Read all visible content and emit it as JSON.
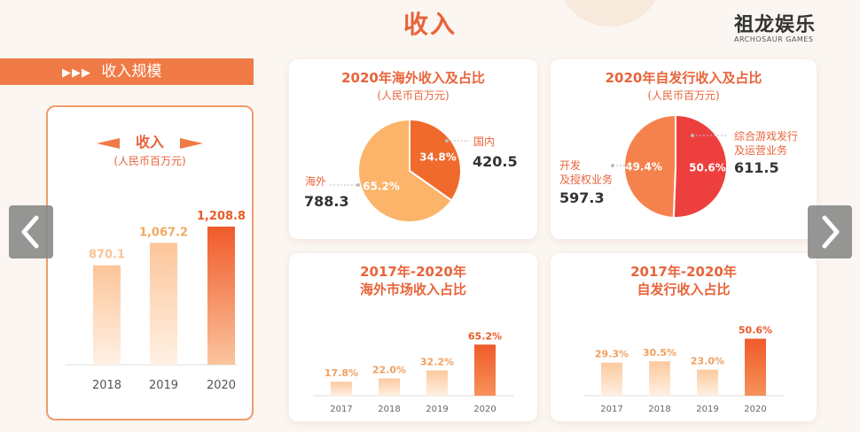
{
  "page": {
    "title": "收入"
  },
  "logo": {
    "main": "祖龙娱乐",
    "sub": "ARCHOSAUR GAMES"
  },
  "banner": {
    "arrows": "▶▶▶",
    "label": "收入规模"
  },
  "revenue": {
    "title": "收入",
    "unit": "(人民币百万元)",
    "chart_data": {
      "type": "bar",
      "categories": [
        "2018",
        "2019",
        "2020"
      ],
      "values": [
        870.1,
        1067.2,
        1208.8
      ],
      "value_labels": [
        "870.1",
        "1,067.2",
        "1,208.8"
      ],
      "title": "收入",
      "ylabel": "(人民币百万元)"
    }
  },
  "pie_overseas": {
    "title": "2020年海外收入及占比",
    "unit": "(人民币百万元)",
    "chart_data": {
      "type": "pie",
      "title": "2020年海外收入及占比",
      "slices": [
        {
          "name": "国内",
          "value": 420.5,
          "percent": 34.8,
          "pct_label": "34.8%",
          "value_label": "420.5",
          "color": "#f06a2c"
        },
        {
          "name": "海外",
          "value": 788.3,
          "percent": 65.2,
          "pct_label": "65.2%",
          "value_label": "788.3",
          "color": "#fbb46a"
        }
      ]
    }
  },
  "pie_self": {
    "title": "2020年自发行收入及占比",
    "unit": "(人民币百万元)",
    "chart_data": {
      "type": "pie",
      "title": "2020年自发行收入及占比",
      "slices": [
        {
          "name": "综合游戏发行及运营业务",
          "label_line1": "综合游戏发行",
          "label_line2": "及运营业务",
          "value": 611.5,
          "percent": 50.6,
          "pct_label": "50.6%",
          "value_label": "611.5",
          "color": "#ee3f3f"
        },
        {
          "name": "开发及授权业务",
          "label_line1": "开发",
          "label_line2": "及授权业务",
          "value": 597.3,
          "percent": 49.4,
          "pct_label": "49.4%",
          "value_label": "597.3",
          "color": "#f5824d"
        }
      ]
    }
  },
  "bar_overseas": {
    "title_line1": "2017年-2020年",
    "title_line2": "海外市场收入占比",
    "chart_data": {
      "type": "bar",
      "title": "2017年-2020年 海外市场收入占比",
      "categories": [
        "2017",
        "2018",
        "2019",
        "2020"
      ],
      "values": [
        17.8,
        22.0,
        32.2,
        65.2
      ],
      "value_labels": [
        "17.8%",
        "22.0%",
        "32.2%",
        "65.2%"
      ],
      "ylim": [
        0,
        70
      ]
    }
  },
  "bar_self": {
    "title_line1": "2017年-2020年",
    "title_line2": "自发行收入占比",
    "chart_data": {
      "type": "bar",
      "title": "2017年-2020年 自发行收入占比",
      "categories": [
        "2017",
        "2018",
        "2019",
        "2020"
      ],
      "values": [
        29.3,
        30.5,
        23.0,
        50.6
      ],
      "value_labels": [
        "29.3%",
        "30.5%",
        "23.0%",
        "50.6%"
      ],
      "ylim": [
        0,
        55
      ]
    }
  },
  "colors": {
    "accent": "#e8643a",
    "bar_light": "#fcd8b8",
    "bar_dark": "#f0602a",
    "nav": "#8b8b8b"
  },
  "nav": {
    "prev_icon": "chevron-left-icon",
    "next_icon": "chevron-right-icon"
  }
}
